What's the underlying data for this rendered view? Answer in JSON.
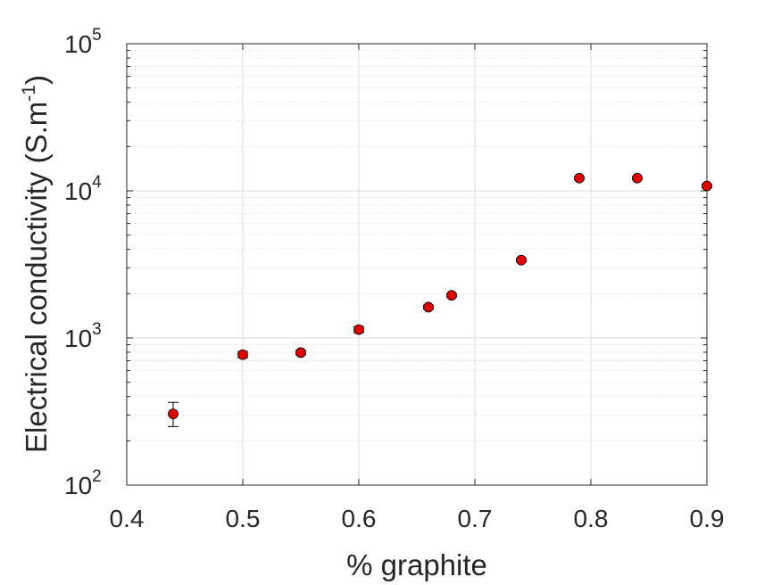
{
  "chart_data": {
    "type": "scatter",
    "title": "",
    "xlabel": "% graphite",
    "ylabel": "Electrical conductivity (S.m",
    "ylabel_superscript": "-1",
    "ylabel_suffix": ")",
    "xlim": [
      0.4,
      0.9
    ],
    "ylim": [
      100,
      100000
    ],
    "yscale": "log",
    "grid": true,
    "minor_grid": true,
    "legend": "none",
    "x_ticks": [
      "0.4",
      "0.5",
      "0.6",
      "0.7",
      "0.8",
      "0.9"
    ],
    "x_tick_values": [
      0.4,
      0.5,
      0.6,
      0.7,
      0.8,
      0.9
    ],
    "y_tick_values": [
      100,
      1000,
      10000,
      100000
    ],
    "y_tick_base": "10",
    "y_tick_exponents": [
      "2",
      "3",
      "4",
      "5"
    ],
    "marker_color": "#e00000",
    "marker_edge_color": "#000000",
    "series": [
      {
        "points": [
          {
            "x": 0.44,
            "y": 305,
            "err_low": 250,
            "err_high": 365
          },
          {
            "x": 0.5,
            "y": 770,
            "err_low": 735,
            "err_high": 810
          },
          {
            "x": 0.55,
            "y": 795,
            "err_low": 770,
            "err_high": 825
          },
          {
            "x": 0.6,
            "y": 1140,
            "err_low": 1085,
            "err_high": 1195
          },
          {
            "x": 0.66,
            "y": 1620,
            "err_low": 1570,
            "err_high": 1670
          },
          {
            "x": 0.68,
            "y": 1950,
            "err_low": 1900,
            "err_high": 2000
          },
          {
            "x": 0.74,
            "y": 3380,
            "err_low": 3300,
            "err_high": 3460
          },
          {
            "x": 0.79,
            "y": 12200,
            "err_low": 11900,
            "err_high": 12500
          },
          {
            "x": 0.84,
            "y": 12200,
            "err_low": 11900,
            "err_high": 12500
          },
          {
            "x": 0.9,
            "y": 10800,
            "err_low": 10500,
            "err_high": 11100
          }
        ]
      }
    ]
  }
}
